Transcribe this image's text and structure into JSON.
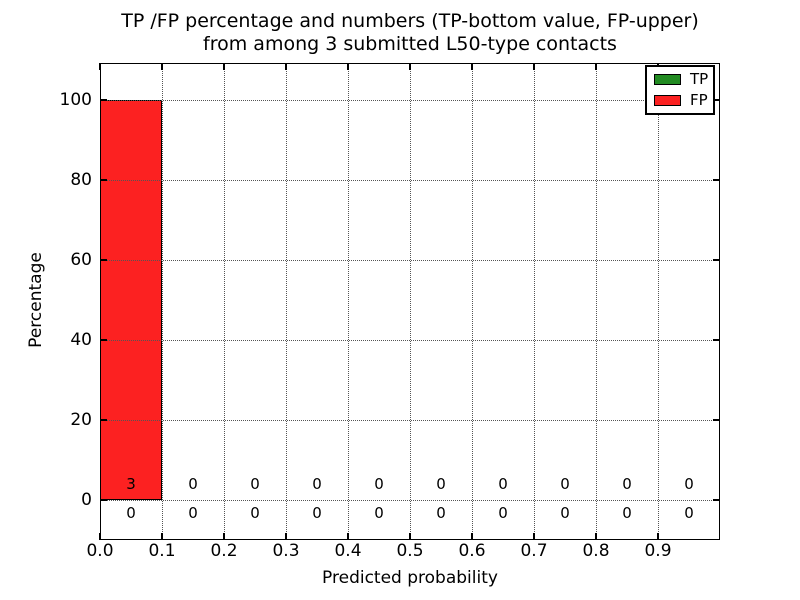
{
  "chart_data": {
    "type": "bar",
    "title": "TP /FP percentage and numbers (TP-bottom value, FP-upper)\nfrom among 3 submitted L50-type contacts",
    "title_line1": "TP /FP percentage and numbers (TP-bottom value, FP-upper)",
    "title_line2": "from among 3 submitted L50-type contacts",
    "xlabel": "Predicted probability",
    "ylabel": "Percentage",
    "xlim": [
      0.0,
      1.0
    ],
    "ylim": [
      -10,
      109.25
    ],
    "grid": {
      "visible": true,
      "style": "dotted",
      "color": "#555555",
      "axisbelow": false
    },
    "bin_edges": [
      0.0,
      0.1,
      0.2,
      0.3,
      0.4,
      0.5,
      0.6,
      0.7,
      0.8,
      0.9,
      1.0
    ],
    "x_ticks": [
      {
        "value": 0.0,
        "label": "0.0"
      },
      {
        "value": 0.1,
        "label": "0.1"
      },
      {
        "value": 0.2,
        "label": "0.2"
      },
      {
        "value": 0.3,
        "label": "0.3"
      },
      {
        "value": 0.4,
        "label": "0.4"
      },
      {
        "value": 0.5,
        "label": "0.5"
      },
      {
        "value": 0.6,
        "label": "0.6"
      },
      {
        "value": 0.7,
        "label": "0.7"
      },
      {
        "value": 0.8,
        "label": "0.8"
      },
      {
        "value": 0.9,
        "label": "0.9"
      }
    ],
    "y_ticks": [
      {
        "value": 0,
        "label": "0"
      },
      {
        "value": 20,
        "label": "20"
      },
      {
        "value": 40,
        "label": "40"
      },
      {
        "value": 60,
        "label": "60"
      },
      {
        "value": 80,
        "label": "80"
      },
      {
        "value": 100,
        "label": "100"
      }
    ],
    "series": [
      {
        "name": "TP",
        "color": "#228b22",
        "percent": [
          0,
          0,
          0,
          0,
          0,
          0,
          0,
          0,
          0,
          0
        ],
        "counts": [
          0,
          0,
          0,
          0,
          0,
          0,
          0,
          0,
          0,
          0
        ]
      },
      {
        "name": "FP",
        "color": "#fc2121",
        "percent": [
          100,
          0,
          0,
          0,
          0,
          0,
          0,
          0,
          0,
          0
        ],
        "counts": [
          3,
          0,
          0,
          0,
          0,
          0,
          0,
          0,
          0,
          0
        ]
      }
    ],
    "count_rows": {
      "upper": "FP",
      "lower": "TP"
    },
    "legend": {
      "position": "upper right",
      "entries": [
        {
          "label": "TP",
          "color": "#228b22"
        },
        {
          "label": "FP",
          "color": "#fc2121"
        }
      ]
    }
  }
}
